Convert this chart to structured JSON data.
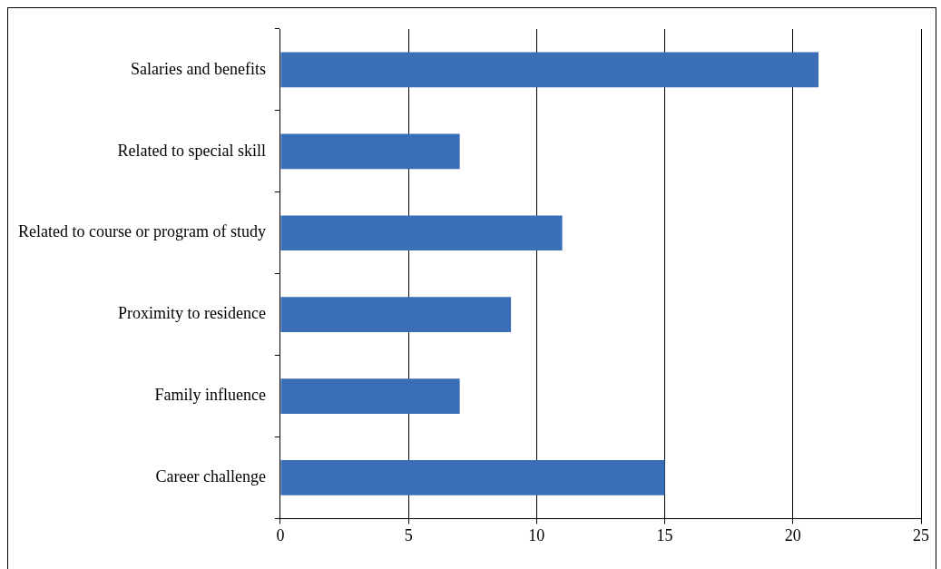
{
  "chart_data": {
    "type": "bar",
    "orientation": "horizontal",
    "categories": [
      "Salaries and benefits",
      "Related to special skill",
      "Related to course or program of study",
      "Proximity to residence",
      "Family influence",
      "Career challenge"
    ],
    "values": [
      21,
      7,
      11,
      9,
      7,
      15
    ],
    "color": "#3a6fb7",
    "xlim": [
      0,
      25
    ],
    "xticks": [
      0,
      5,
      10,
      15,
      20,
      25
    ],
    "grid": "x",
    "legend": false
  }
}
